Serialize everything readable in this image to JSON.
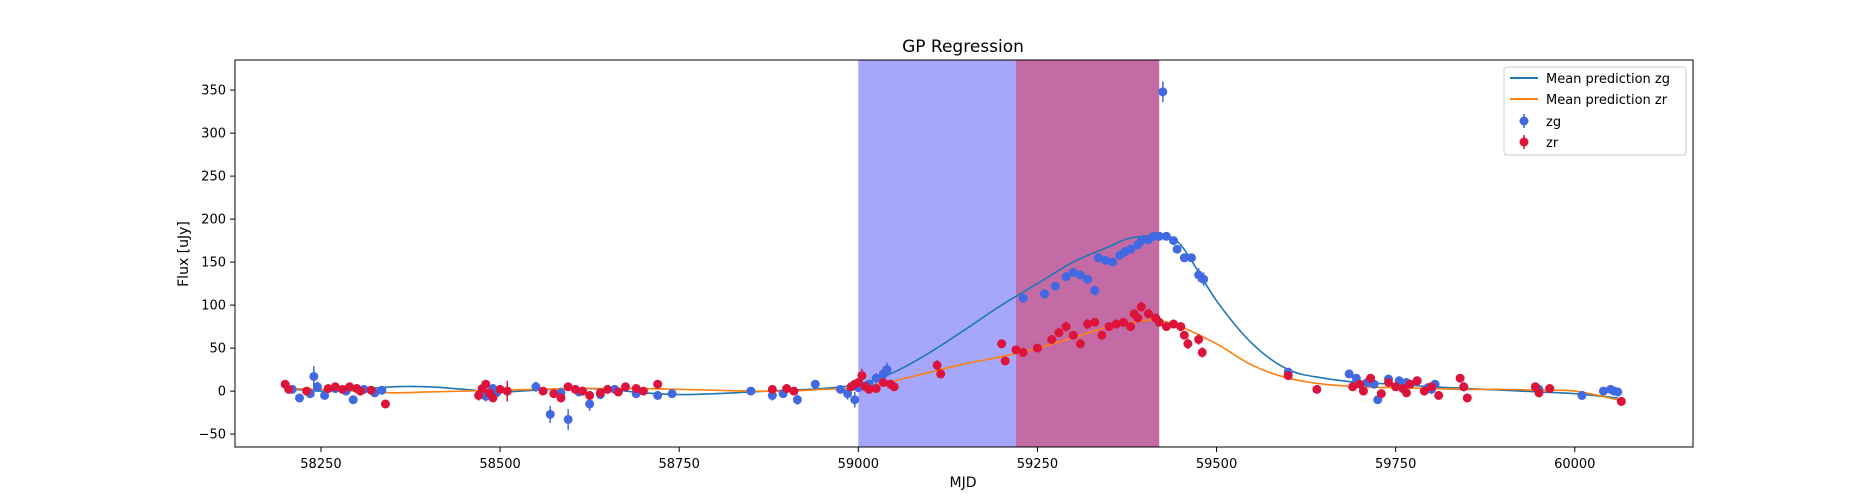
{
  "chart_data": {
    "type": "scatter",
    "title": "GP Regression",
    "xlabel": "MJD",
    "ylabel": "Flux [uJy]",
    "xlim": [
      58130,
      60165
    ],
    "ylim": [
      -65,
      385
    ],
    "xticks": [
      58250,
      58500,
      58750,
      59000,
      59250,
      59500,
      59750,
      60000
    ],
    "yticks": [
      -50,
      0,
      50,
      100,
      150,
      200,
      250,
      300,
      350
    ],
    "grid": false,
    "legend_position": "top-right",
    "shaded_regions": [
      {
        "x0": 59000,
        "x1": 59220,
        "color": "#a6a6fb"
      },
      {
        "x0": 59220,
        "x1": 59420,
        "color": "#c46ba6"
      }
    ],
    "lines": [
      {
        "name": "Mean prediction zg",
        "color": "#1f77b4",
        "x": [
          58200,
          58250,
          58300,
          58350,
          58400,
          58450,
          58500,
          58550,
          58600,
          58650,
          58700,
          58750,
          58800,
          58850,
          58900,
          58950,
          59000,
          59050,
          59100,
          59150,
          59200,
          59250,
          59300,
          59350,
          59380,
          59420,
          59450,
          59500,
          59550,
          59600,
          59650,
          59700,
          59750,
          59800,
          59850,
          59900,
          59950,
          60000,
          60060
        ],
        "y": [
          3,
          0,
          2,
          5,
          5,
          2,
          -1,
          1,
          3,
          2,
          -2,
          -4,
          -3,
          -1,
          1,
          3,
          8,
          22,
          45,
          72,
          100,
          125,
          150,
          168,
          178,
          180,
          170,
          105,
          55,
          25,
          15,
          10,
          8,
          5,
          3,
          1,
          -1,
          -3,
          -8
        ]
      },
      {
        "name": "Mean prediction zr",
        "color": "#ff7f0e",
        "x": [
          58200,
          58250,
          58300,
          58350,
          58400,
          58450,
          58500,
          58550,
          58600,
          58650,
          58700,
          58750,
          58800,
          58850,
          58900,
          58950,
          59000,
          59050,
          59100,
          59150,
          59200,
          59250,
          59300,
          59350,
          59400,
          59420,
          59450,
          59500,
          59550,
          59600,
          59650,
          59700,
          59750,
          59800,
          59850,
          59900,
          59950,
          60000,
          60060
        ],
        "y": [
          3,
          2,
          0,
          -2,
          -1,
          0,
          1,
          2,
          3,
          3,
          3,
          2,
          1,
          0,
          0,
          2,
          4,
          12,
          22,
          32,
          40,
          50,
          62,
          75,
          82,
          82,
          75,
          55,
          30,
          15,
          8,
          5,
          4,
          3,
          2,
          2,
          1,
          0,
          -10
        ]
      }
    ],
    "series": [
      {
        "name": "zg",
        "color": "#4169e1",
        "points": [
          [
            58210,
            2,
            4
          ],
          [
            58220,
            -8,
            5
          ],
          [
            58235,
            -3,
            4
          ],
          [
            58240,
            17,
            12
          ],
          [
            58245,
            5,
            6
          ],
          [
            58255,
            -5,
            4
          ],
          [
            58270,
            3,
            4
          ],
          [
            58285,
            0,
            4
          ],
          [
            58295,
            -10,
            5
          ],
          [
            58310,
            2,
            4
          ],
          [
            58325,
            -2,
            4
          ],
          [
            58335,
            1,
            4
          ],
          [
            58480,
            -6,
            6
          ],
          [
            58490,
            3,
            5
          ],
          [
            58495,
            -2,
            4
          ],
          [
            58550,
            5,
            6
          ],
          [
            58570,
            -27,
            10
          ],
          [
            58585,
            -2,
            6
          ],
          [
            58595,
            -33,
            12
          ],
          [
            58610,
            -1,
            5
          ],
          [
            58625,
            -15,
            8
          ],
          [
            58640,
            -4,
            5
          ],
          [
            58660,
            2,
            5
          ],
          [
            58690,
            -3,
            5
          ],
          [
            58720,
            -5,
            4
          ],
          [
            58740,
            -3,
            4
          ],
          [
            58850,
            0,
            4
          ],
          [
            58880,
            -5,
            6
          ],
          [
            58895,
            -3,
            5
          ],
          [
            58915,
            -10,
            6
          ],
          [
            58940,
            8,
            5
          ],
          [
            58975,
            2,
            5
          ],
          [
            58985,
            -3,
            7
          ],
          [
            58995,
            -10,
            9
          ],
          [
            59000,
            4,
            5
          ],
          [
            59015,
            8,
            5
          ],
          [
            59025,
            15,
            6
          ],
          [
            59035,
            20,
            8
          ],
          [
            59040,
            25,
            8
          ],
          [
            59045,
            8,
            5
          ],
          [
            59230,
            108,
            5
          ],
          [
            59260,
            113,
            5
          ],
          [
            59275,
            122,
            5
          ],
          [
            59290,
            133,
            5
          ],
          [
            59300,
            138,
            5
          ],
          [
            59310,
            135,
            5
          ],
          [
            59320,
            130,
            5
          ],
          [
            59330,
            117,
            6
          ],
          [
            59335,
            155,
            5
          ],
          [
            59345,
            152,
            5
          ],
          [
            59355,
            150,
            5
          ],
          [
            59365,
            158,
            5
          ],
          [
            59372,
            162,
            5
          ],
          [
            59380,
            165,
            5
          ],
          [
            59390,
            170,
            5
          ],
          [
            59395,
            175,
            5
          ],
          [
            59405,
            176,
            5
          ],
          [
            59412,
            180,
            5
          ],
          [
            59420,
            180,
            5
          ],
          [
            59425,
            348,
            12
          ],
          [
            59430,
            180,
            5
          ],
          [
            59440,
            175,
            5
          ],
          [
            59445,
            165,
            5
          ],
          [
            59455,
            155,
            5
          ],
          [
            59465,
            155,
            5
          ],
          [
            59475,
            135,
            8
          ],
          [
            59482,
            130,
            8
          ],
          [
            59600,
            22,
            5
          ],
          [
            59685,
            20,
            5
          ],
          [
            59695,
            15,
            5
          ],
          [
            59710,
            10,
            5
          ],
          [
            59720,
            8,
            5
          ],
          [
            59725,
            -10,
            5
          ],
          [
            59740,
            14,
            5
          ],
          [
            59755,
            12,
            5
          ],
          [
            59765,
            10,
            5
          ],
          [
            59770,
            8,
            5
          ],
          [
            59780,
            12,
            5
          ],
          [
            59795,
            4,
            5
          ],
          [
            59800,
            2,
            5
          ],
          [
            59805,
            8,
            5
          ],
          [
            59845,
            5,
            5
          ],
          [
            59950,
            2,
            5
          ],
          [
            60010,
            -5,
            5
          ],
          [
            60040,
            0,
            5
          ],
          [
            60050,
            2,
            5
          ],
          [
            60055,
            0,
            5
          ],
          [
            60060,
            -1,
            5
          ]
        ]
      },
      {
        "name": "zr",
        "color": "#dc143c",
        "points": [
          [
            58200,
            8,
            4
          ],
          [
            58205,
            2,
            4
          ],
          [
            58230,
            0,
            4
          ],
          [
            58260,
            3,
            4
          ],
          [
            58270,
            5,
            4
          ],
          [
            58280,
            2,
            4
          ],
          [
            58290,
            5,
            4
          ],
          [
            58300,
            3,
            4
          ],
          [
            58305,
            0,
            4
          ],
          [
            58320,
            1,
            4
          ],
          [
            58340,
            -15,
            5
          ],
          [
            58470,
            -5,
            6
          ],
          [
            58475,
            3,
            5
          ],
          [
            58480,
            8,
            5
          ],
          [
            58485,
            -2,
            5
          ],
          [
            58490,
            -8,
            5
          ],
          [
            58500,
            2,
            4
          ],
          [
            58510,
            0,
            12
          ],
          [
            58560,
            0,
            4
          ],
          [
            58575,
            -3,
            5
          ],
          [
            58585,
            -8,
            5
          ],
          [
            58595,
            5,
            5
          ],
          [
            58605,
            2,
            5
          ],
          [
            58615,
            0,
            5
          ],
          [
            58625,
            -5,
            5
          ],
          [
            58640,
            -2,
            5
          ],
          [
            58650,
            2,
            4
          ],
          [
            58665,
            -1,
            5
          ],
          [
            58675,
            5,
            5
          ],
          [
            58690,
            3,
            4
          ],
          [
            58700,
            0,
            4
          ],
          [
            58720,
            8,
            4
          ],
          [
            58880,
            2,
            5
          ],
          [
            58900,
            3,
            5
          ],
          [
            58910,
            0,
            4
          ],
          [
            58990,
            5,
            4
          ],
          [
            58995,
            8,
            5
          ],
          [
            59000,
            10,
            4
          ],
          [
            59005,
            18,
            8
          ],
          [
            59010,
            5,
            4
          ],
          [
            59015,
            2,
            4
          ],
          [
            59025,
            3,
            4
          ],
          [
            59035,
            10,
            4
          ],
          [
            59045,
            8,
            4
          ],
          [
            59050,
            5,
            4
          ],
          [
            59110,
            30,
            6
          ],
          [
            59115,
            20,
            5
          ],
          [
            59200,
            55,
            5
          ],
          [
            59205,
            35,
            5
          ],
          [
            59220,
            48,
            5
          ],
          [
            59230,
            45,
            5
          ],
          [
            59250,
            50,
            5
          ],
          [
            59270,
            60,
            5
          ],
          [
            59280,
            68,
            5
          ],
          [
            59290,
            75,
            6
          ],
          [
            59300,
            65,
            5
          ],
          [
            59310,
            55,
            5
          ],
          [
            59320,
            78,
            6
          ],
          [
            59330,
            80,
            5
          ],
          [
            59340,
            65,
            5
          ],
          [
            59350,
            75,
            5
          ],
          [
            59360,
            78,
            5
          ],
          [
            59370,
            80,
            5
          ],
          [
            59380,
            75,
            5
          ],
          [
            59385,
            90,
            5
          ],
          [
            59390,
            85,
            5
          ],
          [
            59395,
            98,
            6
          ],
          [
            59405,
            90,
            5
          ],
          [
            59415,
            85,
            5
          ],
          [
            59420,
            80,
            5
          ],
          [
            59430,
            75,
            5
          ],
          [
            59440,
            78,
            5
          ],
          [
            59450,
            75,
            5
          ],
          [
            59455,
            65,
            5
          ],
          [
            59460,
            55,
            6
          ],
          [
            59475,
            60,
            6
          ],
          [
            59480,
            45,
            6
          ],
          [
            59600,
            18,
            5
          ],
          [
            59640,
            2,
            5
          ],
          [
            59690,
            5,
            5
          ],
          [
            59700,
            8,
            5
          ],
          [
            59705,
            0,
            5
          ],
          [
            59715,
            15,
            5
          ],
          [
            59730,
            -3,
            5
          ],
          [
            59740,
            10,
            5
          ],
          [
            59750,
            5,
            5
          ],
          [
            59760,
            3,
            5
          ],
          [
            59765,
            -2,
            5
          ],
          [
            59770,
            8,
            5
          ],
          [
            59780,
            12,
            5
          ],
          [
            59790,
            0,
            5
          ],
          [
            59800,
            5,
            5
          ],
          [
            59810,
            -5,
            5
          ],
          [
            59840,
            15,
            5
          ],
          [
            59845,
            5,
            5
          ],
          [
            59850,
            -8,
            5
          ],
          [
            59945,
            5,
            5
          ],
          [
            59950,
            -2,
            5
          ],
          [
            59965,
            3,
            5
          ],
          [
            60065,
            -12,
            5
          ]
        ]
      }
    ]
  }
}
